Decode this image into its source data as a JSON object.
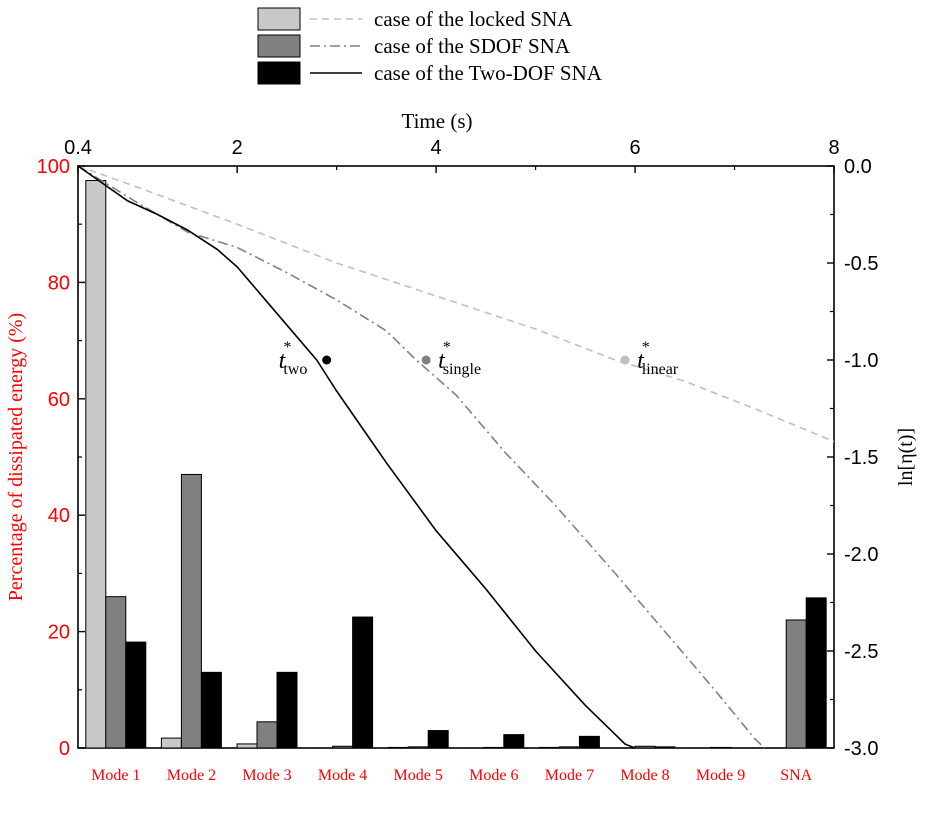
{
  "chart_data": {
    "type": "bar+line",
    "legend": {
      "placement": "top-center",
      "entries": [
        {
          "bar_label": "",
          "line_label": "case of the locked SNA"
        },
        {
          "bar_label": "",
          "line_label": "case of the SDOF SNA"
        },
        {
          "bar_label": "",
          "line_label": "case of the Two-DOF SNA"
        }
      ]
    },
    "colors": {
      "axis_left": "#ff0000",
      "bar_locked": "#c8c8c8",
      "bar_sdof": "#808080",
      "bar_two": "#000000",
      "line_locked": "#c0c0c0",
      "line_sdof": "#808080",
      "line_two": "#000000"
    },
    "bars": {
      "categories": [
        "Mode 1",
        "Mode 2",
        "Mode 3",
        "Mode 4",
        "Mode 5",
        "Mode 6",
        "Mode 7",
        "Mode 8",
        "Mode 9",
        "SNA"
      ],
      "series": [
        {
          "key": "locked",
          "values": [
            97.5,
            1.7,
            0.7,
            0.0,
            0.1,
            0.0,
            0.1,
            0.0,
            0.0,
            0.0
          ]
        },
        {
          "key": "sdof",
          "values": [
            26.0,
            47.0,
            4.5,
            0.3,
            0.2,
            0.1,
            0.2,
            0.3,
            0.1,
            22.0
          ]
        },
        {
          "key": "two",
          "values": [
            18.2,
            13.0,
            13.0,
            22.5,
            3.0,
            2.3,
            2.0,
            0.2,
            0.0,
            25.8
          ]
        }
      ],
      "ylabel": "Percentage of dissipated energy (%)",
      "ylim": [
        0,
        100
      ],
      "yticks": [
        "0",
        "20",
        "40",
        "60",
        "80",
        "100"
      ]
    },
    "lines": {
      "xlabel": "Time (s)",
      "xlim": [
        0.4,
        8
      ],
      "xticks": [
        "0.4",
        "2",
        "4",
        "6",
        "8"
      ],
      "ylabel": "ln[η(t)]",
      "ylim": [
        -3.0,
        0.0
      ],
      "yticks": [
        "0.0",
        "-0.5",
        "-1.0",
        "-1.5",
        "-2.0",
        "-2.5",
        "-3.0"
      ],
      "series": [
        {
          "key": "locked",
          "style": "dashed",
          "x": [
            0.4,
            1.0,
            2.0,
            3.0,
            4.0,
            5.0,
            5.8,
            6.5,
            7.2,
            8.0
          ],
          "y": [
            0.0,
            -0.11,
            -0.3,
            -0.5,
            -0.67,
            -0.84,
            -1.0,
            -1.11,
            -1.25,
            -1.42
          ]
        },
        {
          "key": "sdof",
          "style": "dashdot",
          "x": [
            0.4,
            1.0,
            1.5,
            2.0,
            2.5,
            3.0,
            3.5,
            3.8,
            4.2,
            4.7,
            5.2,
            5.8,
            6.3,
            6.8,
            7.2,
            7.3
          ],
          "y": [
            0.0,
            -0.19,
            -0.34,
            -0.42,
            -0.55,
            -0.69,
            -0.85,
            -1.0,
            -1.18,
            -1.48,
            -1.75,
            -2.1,
            -2.4,
            -2.7,
            -2.95,
            -3.0
          ]
        },
        {
          "key": "two",
          "style": "solid",
          "x": [
            0.4,
            0.9,
            1.2,
            1.5,
            1.8,
            2.0,
            2.3,
            2.6,
            2.8,
            3.0,
            3.5,
            4.0,
            4.5,
            5.0,
            5.5,
            5.9,
            6.0
          ],
          "y": [
            0.0,
            -0.18,
            -0.25,
            -0.33,
            -0.43,
            -0.52,
            -0.7,
            -0.88,
            -1.0,
            -1.16,
            -1.53,
            -1.88,
            -2.18,
            -2.5,
            -2.78,
            -2.98,
            -3.0
          ]
        }
      ],
      "markers": [
        {
          "key": "two",
          "x": 2.9,
          "y": -1.0,
          "label_base": "t",
          "label_sup": "*",
          "label_sub": "two"
        },
        {
          "key": "sdof",
          "x": 3.9,
          "y": -1.0,
          "label_base": "t",
          "label_sup": "*",
          "label_sub": "single"
        },
        {
          "key": "locked",
          "x": 5.9,
          "y": -1.0,
          "label_base": "t",
          "label_sup": "*",
          "label_sub": "linear"
        }
      ]
    }
  }
}
